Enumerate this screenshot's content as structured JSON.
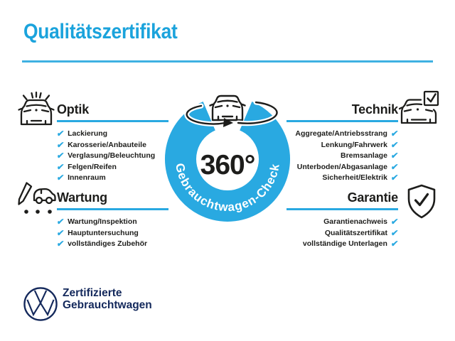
{
  "header": {
    "title": "Qualitätszertifikat"
  },
  "badge": {
    "center_label": "360°",
    "ring_label": "Gebrauchtwagen-Check",
    "icon": "car-rotation-icon"
  },
  "check_glyph": "✔",
  "sections": [
    {
      "id": "optik",
      "title": "Optik",
      "icon": "car-shine-icon",
      "align": "left",
      "items": [
        "Lackierung",
        "Karosserie/Anbauteile",
        "Verglasung/Beleuchtung",
        "Felgen/Reifen",
        "Innenraum"
      ]
    },
    {
      "id": "technik",
      "title": "Technik",
      "icon": "car-checkbox-icon",
      "align": "right",
      "items": [
        "Aggregate/Antriebsstrang",
        "Lenkung/Fahrwerk",
        "Bremsanlage",
        "Unterboden/Abgasanlage",
        "Sicherheit/Elektrik"
      ]
    },
    {
      "id": "wartung",
      "title": "Wartung",
      "icon": "service-checklist-icon",
      "align": "left",
      "items": [
        "Wartung/Inspektion",
        "Hauptuntersuchung",
        "vollständiges Zubehör"
      ]
    },
    {
      "id": "garantie",
      "title": "Garantie",
      "icon": "shield-check-icon",
      "align": "right",
      "items": [
        "Garantienachweis",
        "Qualitätszertifikat",
        "vollständige Unterlagen"
      ]
    }
  ],
  "footer": {
    "logo": "vw-logo",
    "brand_line1": "Zertifizierte",
    "brand_line2": "Gebrauchtwagen"
  },
  "colors": {
    "accent_blue": "#1ba3dc",
    "ring_blue": "#29a9e1",
    "check_blue": "#29a9e1",
    "text_dark": "#1d1d1b",
    "brand_navy": "#14295c",
    "background": "#ffffff"
  }
}
